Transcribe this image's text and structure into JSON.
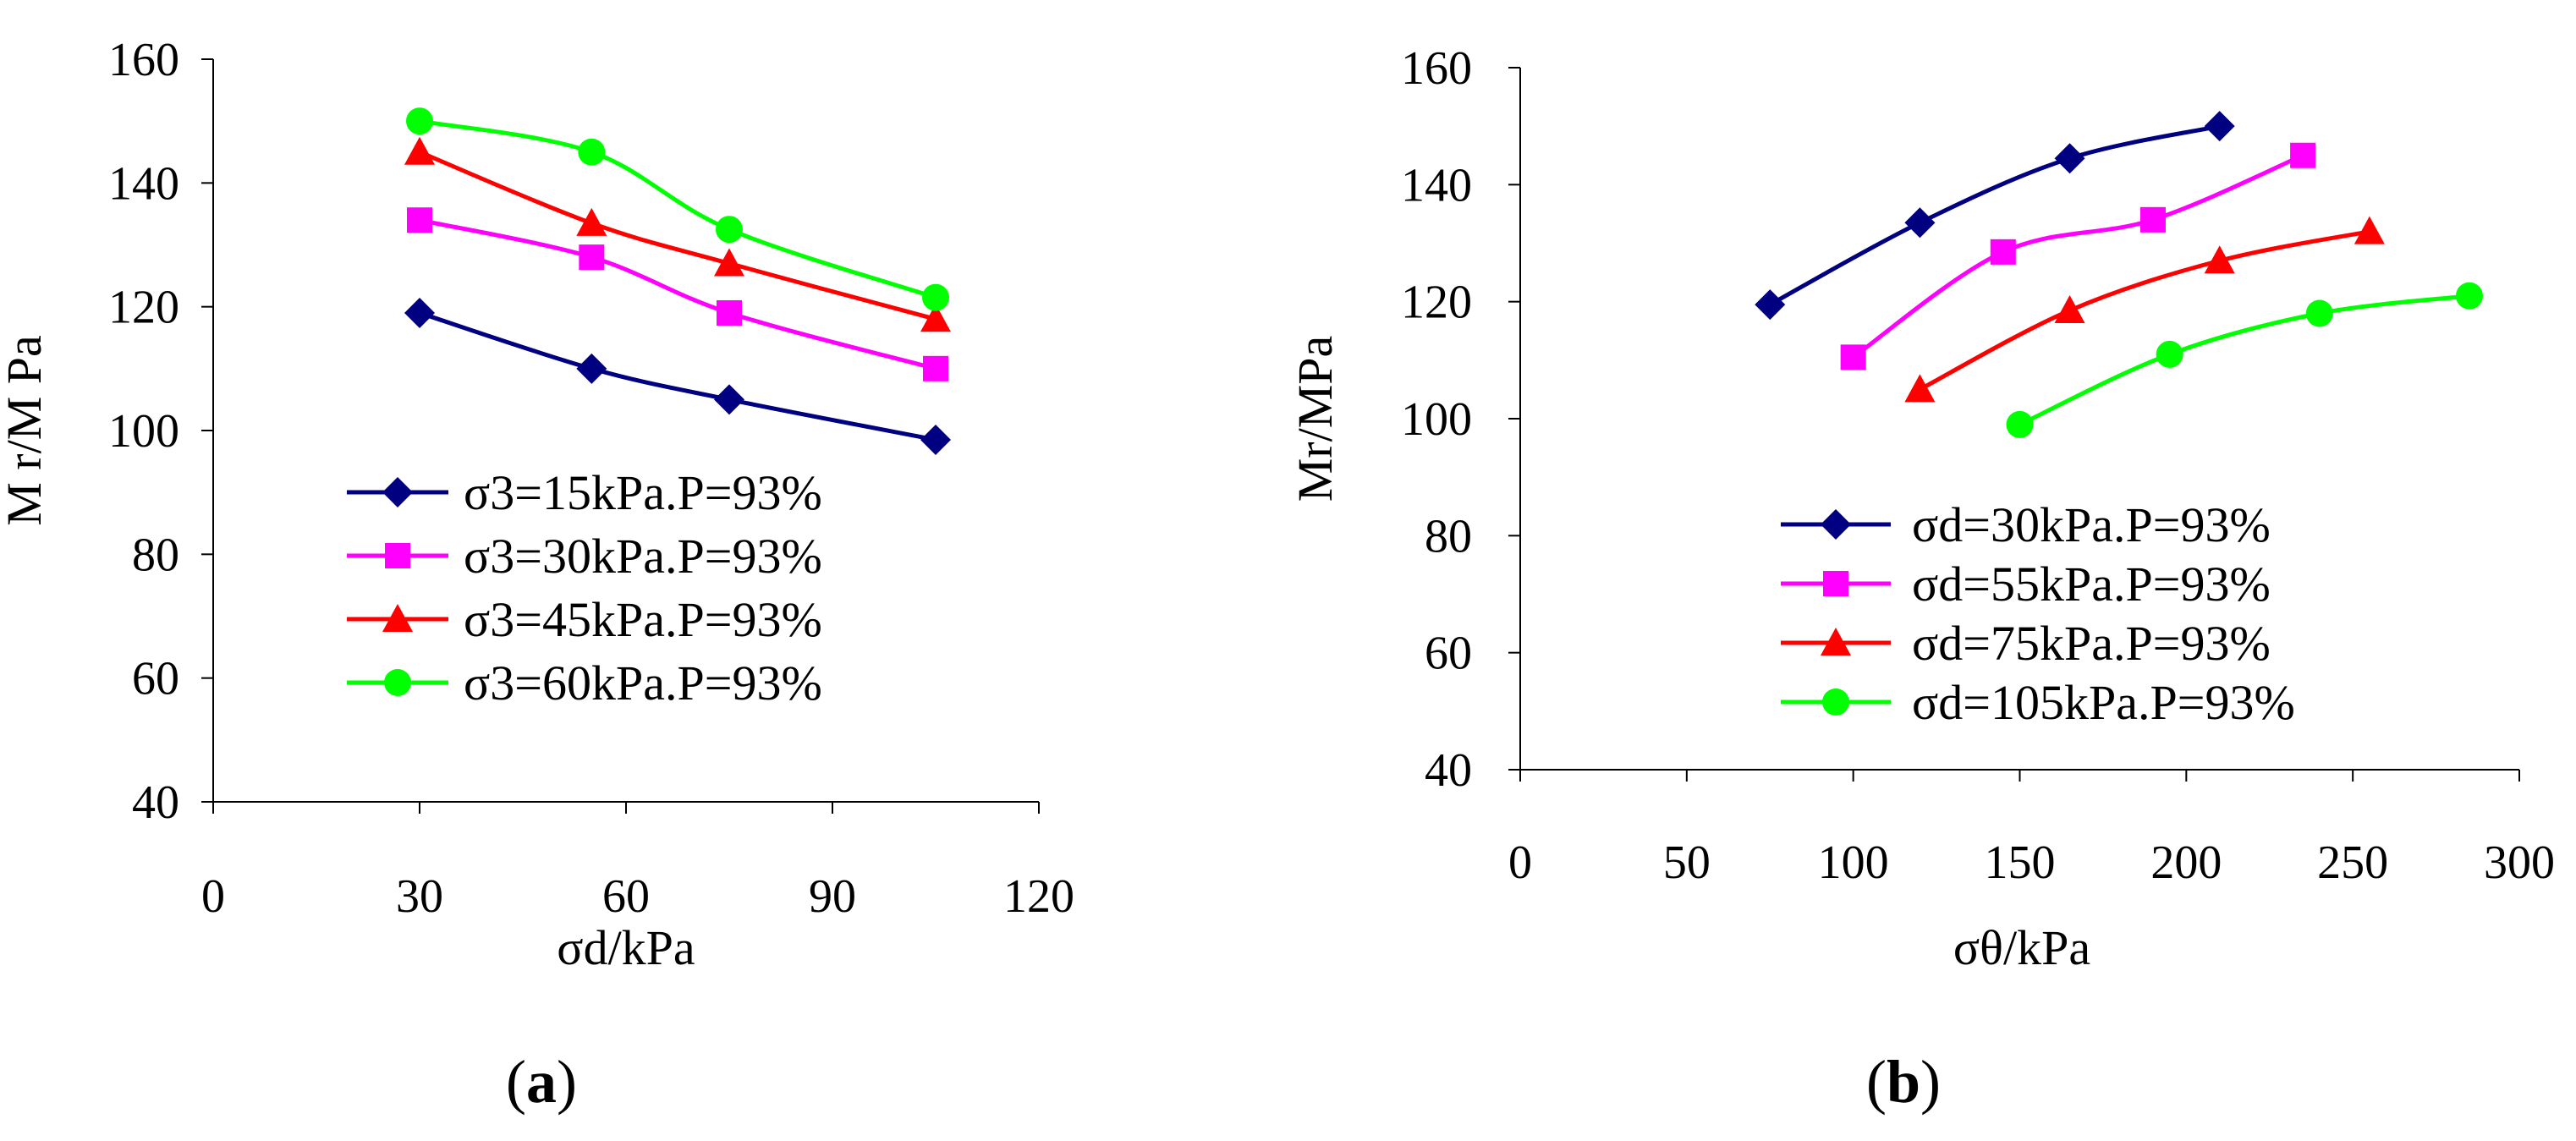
{
  "chart_data": [
    {
      "type": "line",
      "panel": "a",
      "panel_label": "a",
      "xlabel": "σd/kPa",
      "ylabel": "M r/M Pa",
      "xlim": [
        0,
        120
      ],
      "ylim": [
        40,
        160
      ],
      "xticks": [
        0,
        30,
        60,
        90,
        120
      ],
      "yticks": [
        40,
        60,
        80,
        100,
        120,
        140,
        160
      ],
      "legend_position": "center-left",
      "series": [
        {
          "name": "σ3=15kPa.P=93%",
          "color": "#000080",
          "marker": "diamond",
          "x": [
            30,
            55,
            75,
            105
          ],
          "y": [
            119,
            110,
            105,
            98.5
          ]
        },
        {
          "name": "σ3=30kPa.P=93%",
          "color": "#ff00ff",
          "marker": "square",
          "x": [
            30,
            55,
            75,
            105
          ],
          "y": [
            134,
            128,
            119,
            110
          ]
        },
        {
          "name": "σ3=45kPa.P=93%",
          "color": "#ff0000",
          "marker": "triangle",
          "x": [
            30,
            55,
            75,
            105
          ],
          "y": [
            145,
            133.5,
            127,
            118
          ]
        },
        {
          "name": "σ3=60kPa.P=93%",
          "color": "#00ff00",
          "marker": "circle",
          "x": [
            30,
            55,
            75,
            105
          ],
          "y": [
            150,
            145,
            132.5,
            121.5
          ]
        }
      ]
    },
    {
      "type": "line",
      "panel": "b",
      "panel_label": "b",
      "xlabel": "σθ/kPa",
      "ylabel": "Mr/MPa",
      "xlim": [
        0,
        300
      ],
      "ylim": [
        40,
        160
      ],
      "xticks": [
        0,
        50,
        100,
        150,
        200,
        250,
        300
      ],
      "yticks": [
        40,
        60,
        80,
        100,
        120,
        140,
        160
      ],
      "legend_position": "bottom-center",
      "series": [
        {
          "name": "σd=30kPa.P=93%",
          "color": "#000080",
          "marker": "diamond",
          "x": [
            75,
            120,
            165,
            210
          ],
          "y": [
            119.5,
            133.5,
            144.5,
            150
          ]
        },
        {
          "name": "σd=55kPa.P=93%",
          "color": "#ff00ff",
          "marker": "square",
          "x": [
            100,
            145,
            190,
            235
          ],
          "y": [
            110.5,
            128.5,
            134,
            145
          ]
        },
        {
          "name": "σd=75kPa.P=93%",
          "color": "#ff0000",
          "marker": "triangle",
          "x": [
            120,
            165,
            210,
            255
          ],
          "y": [
            105,
            118.5,
            127,
            132
          ]
        },
        {
          "name": "σd=105kPa.P=93%",
          "color": "#00ff00",
          "marker": "circle",
          "x": [
            150,
            195,
            240,
            285
          ],
          "y": [
            99,
            111,
            118,
            121
          ]
        }
      ]
    }
  ]
}
